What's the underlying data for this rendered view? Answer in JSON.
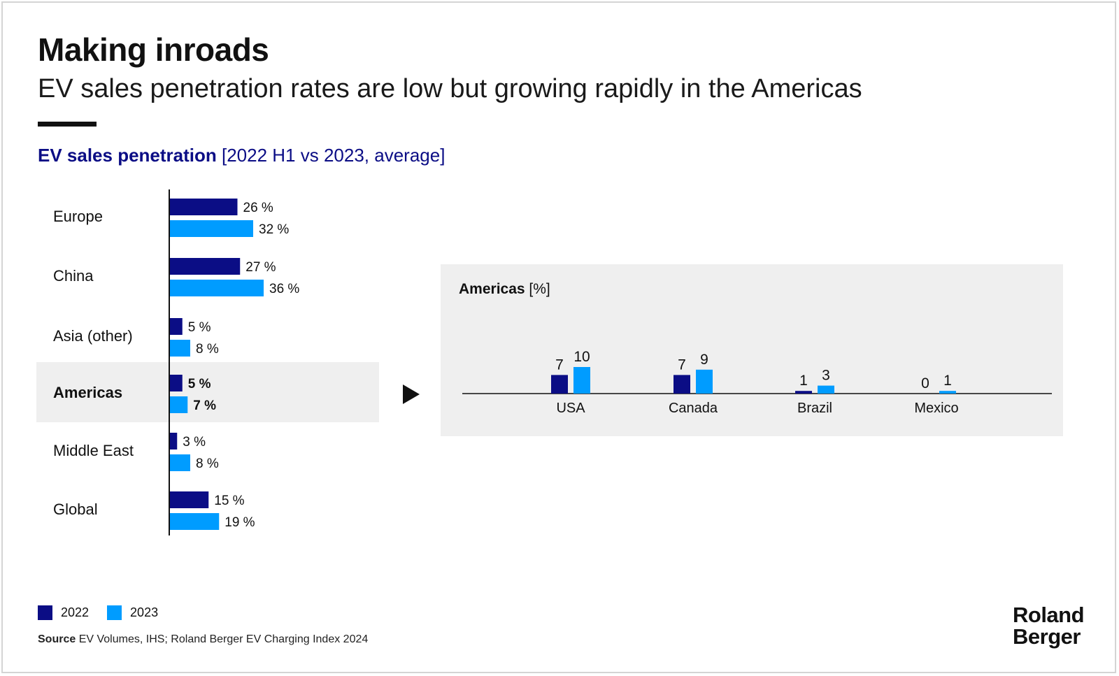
{
  "header": {
    "title": "Making inroads",
    "subtitle": "EV sales penetration rates are low but growing rapidly in the Americas"
  },
  "chart_heading": {
    "bold": "EV sales penetration",
    "rest": " [2022 H1 vs 2023, average]"
  },
  "colors": {
    "c2022": "#0b0d85",
    "c2023": "#009cff",
    "panel": "#efefef"
  },
  "chart_data": [
    {
      "type": "bar",
      "orientation": "horizontal",
      "title": "EV sales penetration [2022 H1 vs 2023, average]",
      "categories": [
        "Europe",
        "China",
        "Asia (other)",
        "Americas",
        "Middle East",
        "Global"
      ],
      "highlight": "Americas",
      "unit": "%",
      "series": [
        {
          "name": "2022",
          "values": [
            26,
            27,
            5,
            5,
            3,
            15
          ]
        },
        {
          "name": "2023",
          "values": [
            32,
            36,
            8,
            7,
            8,
            19
          ]
        }
      ]
    },
    {
      "type": "bar",
      "orientation": "vertical",
      "title": "Americas [%]",
      "categories": [
        "USA",
        "Canada",
        "Brazil",
        "Mexico"
      ],
      "series": [
        {
          "name": "2022",
          "values": [
            7,
            7,
            1,
            0
          ]
        },
        {
          "name": "2023",
          "values": [
            10,
            9,
            3,
            1
          ]
        }
      ]
    }
  ],
  "panel": {
    "title_bold": "Americas",
    "title_rest": " [%]"
  },
  "legend": [
    {
      "label": "2022"
    },
    {
      "label": "2023"
    }
  ],
  "source": {
    "label": "Source",
    "text": " EV Volumes, IHS; Roland Berger EV Charging Index 2024"
  },
  "logo": {
    "line1": "Roland",
    "line2": "Berger"
  }
}
